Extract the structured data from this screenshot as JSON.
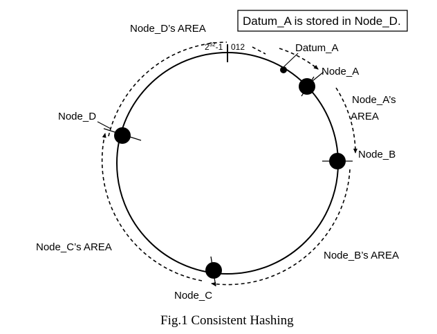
{
  "note": "Datum_A is stored in Node_D.",
  "caption": "Fig.1 Consistent Hashing",
  "ring": {
    "start_label_base": "2",
    "start_label_exp": "32",
    "start_label_suffix": "-1",
    "zero_label": "012"
  },
  "datum": {
    "label": "Datum_A"
  },
  "nodes": [
    {
      "id": "a",
      "label": "Node_A"
    },
    {
      "id": "b",
      "label": "Node_B"
    },
    {
      "id": "c",
      "label": "Node_C"
    },
    {
      "id": "d",
      "label": "Node_D"
    }
  ],
  "areas": {
    "a_line1": "Node_A’s",
    "a_line2": "AREA",
    "b": "Node_B’s AREA",
    "c": "Node_C’s AREA",
    "d": "Node_D’s AREA"
  },
  "colors": {
    "ink": "#000000",
    "background": "#ffffff"
  }
}
